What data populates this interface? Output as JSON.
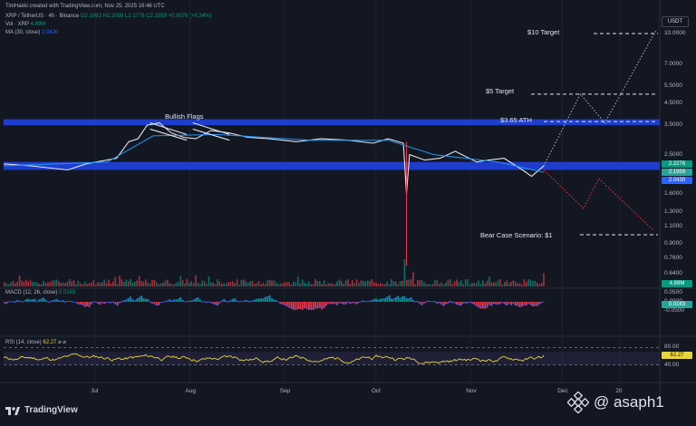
{
  "header": {
    "credit": "TimHakki created with TradingView.com, Nov 25, 2025 16:46 UTC",
    "symbol": "XRP / TetherUS · 4h · Binance",
    "ohlc": "O2.1863 H2.2099 L2.1778 C2.1959 +0.0076 (+0.34%)",
    "vol_label": "Vol · XRP",
    "vol_value": "4.89M",
    "ma_label": "MA (30, close)",
    "ma_value": "2.0430",
    "macd_label": "MACD (12, 26, close)",
    "macd_value": "0.0163",
    "rsi_label": "RSI (14, close)",
    "rsi_value": "62.27",
    "rsi_glyph": "⌀ ⌀"
  },
  "currency_badge": "USDT",
  "annotations": {
    "bullish_flags": "Bullish Flags",
    "target_10": "$10 Target",
    "target_5": "$5 Target",
    "ath": "$3.65 ATH",
    "bear_case": "Bear Case Scenario: $1"
  },
  "price_labels": {
    "green": "2.2276",
    "cyan": "2.1959",
    "blue": "2.0430",
    "vol": "4.89M",
    "macd": "0.0163",
    "rsi": "62.27"
  },
  "footer": {
    "brand": "TradingView",
    "watermark": "@ asaph1"
  },
  "colors": {
    "background": "#131722",
    "support_band": "#1f3fd6",
    "price_line": "#e0e3eb",
    "ma_line": "#2196f3",
    "rsi_line": "#e8d53d",
    "bull": "#089981",
    "bear": "#f23645",
    "bullish_projection": "#b2b5be",
    "bearish_projection": "#f23645"
  },
  "chart_data": [
    {
      "type": "line",
      "title": "XRP / TetherUS · 4h · Binance",
      "y_scale": "log",
      "y_ticks": [
        10.0,
        7.0,
        5.5,
        4.5,
        3.5,
        2.5,
        2.0,
        1.6,
        1.3,
        1.1,
        0.9,
        0.76,
        0.64
      ],
      "y_tick_labels": [
        "10.0000",
        "7.0000",
        "5.5000",
        "4.5000",
        "3.5000",
        "2.5000",
        "2.0000",
        "1.6000",
        "1.3000",
        "1.1000",
        "0.9000",
        "0.7600",
        "0.6400"
      ],
      "x_tick_labels": [
        "Jul",
        "Aug",
        "Sep",
        "Oct",
        "Nov",
        "Dec",
        "20"
      ],
      "x_tick_dates": [
        "2025-07-01",
        "2025-08-01",
        "2025-09-01",
        "2025-10-01",
        "2025-11-01",
        "2025-12-01",
        "2025-12-20"
      ],
      "x_range": [
        "2025-06-01",
        "2026-01-02"
      ],
      "ylim": [
        0.6,
        11.5
      ],
      "series": [
        {
          "x": [
            "2025-06-01",
            "2025-06-10",
            "2025-06-22",
            "2025-06-28",
            "2025-07-08",
            "2025-07-12",
            "2025-07-15",
            "2025-07-18",
            "2025-07-22",
            "2025-07-26",
            "2025-07-30",
            "2025-08-03",
            "2025-08-08",
            "2025-08-14",
            "2025-08-20",
            "2025-08-27",
            "2025-09-05",
            "2025-09-13",
            "2025-09-22",
            "2025-09-30",
            "2025-10-05",
            "2025-10-10",
            "2025-10-11",
            "2025-10-12",
            "2025-10-17",
            "2025-10-22",
            "2025-10-27",
            "2025-11-03",
            "2025-11-07",
            "2025-11-12",
            "2025-11-18",
            "2025-11-21",
            "2025-11-25"
          ],
          "values": [
            2.25,
            2.2,
            2.1,
            2.25,
            2.4,
            2.9,
            3.0,
            3.5,
            3.6,
            3.2,
            3.05,
            3.0,
            3.3,
            3.2,
            3.05,
            3.0,
            2.9,
            3.0,
            2.95,
            2.85,
            3.0,
            2.85,
            1.6,
            2.5,
            2.35,
            2.4,
            2.6,
            2.3,
            2.35,
            2.4,
            2.1,
            1.95,
            2.1959
          ]
        },
        {
          "name": "MA (30, close)",
          "x": [
            "2025-06-01",
            "2025-07-05",
            "2025-07-20",
            "2025-08-10",
            "2025-09-10",
            "2025-10-05",
            "2025-10-20",
            "2025-11-10",
            "2025-11-25"
          ],
          "values": [
            2.2,
            2.3,
            3.1,
            3.15,
            2.95,
            2.95,
            2.5,
            2.3,
            2.043
          ]
        }
      ],
      "horizontal_levels": [
        {
          "label": "$10 Target",
          "value": 10.0
        },
        {
          "label": "$5 Target",
          "value": 5.0
        },
        {
          "label": "$3.65 ATH",
          "value": 3.65
        },
        {
          "label": "Bear Case Scenario: $1",
          "value": 1.0
        }
      ],
      "zones": [
        {
          "from": 3.5,
          "to": 3.75
        },
        {
          "from": 2.1,
          "to": 2.3
        }
      ],
      "projections": [
        {
          "label": "$10 Target",
          "x": [
            "2025-11-25",
            "2025-12-07",
            "2025-12-15",
            "2026-01-01"
          ],
          "values": [
            2.2,
            5.0,
            3.6,
            10.5
          ]
        },
        {
          "label": "Bear Case Scenario: $1",
          "x": [
            "2025-11-25",
            "2025-12-08",
            "2025-12-13",
            "2025-12-31"
          ],
          "values": [
            2.1,
            1.35,
            1.9,
            1.05
          ]
        }
      ],
      "flags": [
        "2025-07-19",
        "2025-07-31",
        "2025-08-02",
        "2025-08-14"
      ]
    },
    {
      "type": "bar",
      "title": "Vol · XRP",
      "latest": "4.89M",
      "note": "volume bars, spike on 2025-10-10"
    },
    {
      "type": "bar",
      "title": "MACD (12, 26, close)",
      "latest": 0.0163,
      "y_ticks": [
        0.05,
        0,
        -0.05
      ],
      "y_tick_labels": [
        "0.0500",
        "0.0000",
        "-0.0500"
      ]
    },
    {
      "type": "line",
      "title": "RSI (14, close)",
      "latest": 62.27,
      "y_ticks": [
        80,
        40
      ],
      "y_tick_labels": [
        "80.00",
        "40.00"
      ],
      "band": [
        30,
        70
      ]
    }
  ]
}
